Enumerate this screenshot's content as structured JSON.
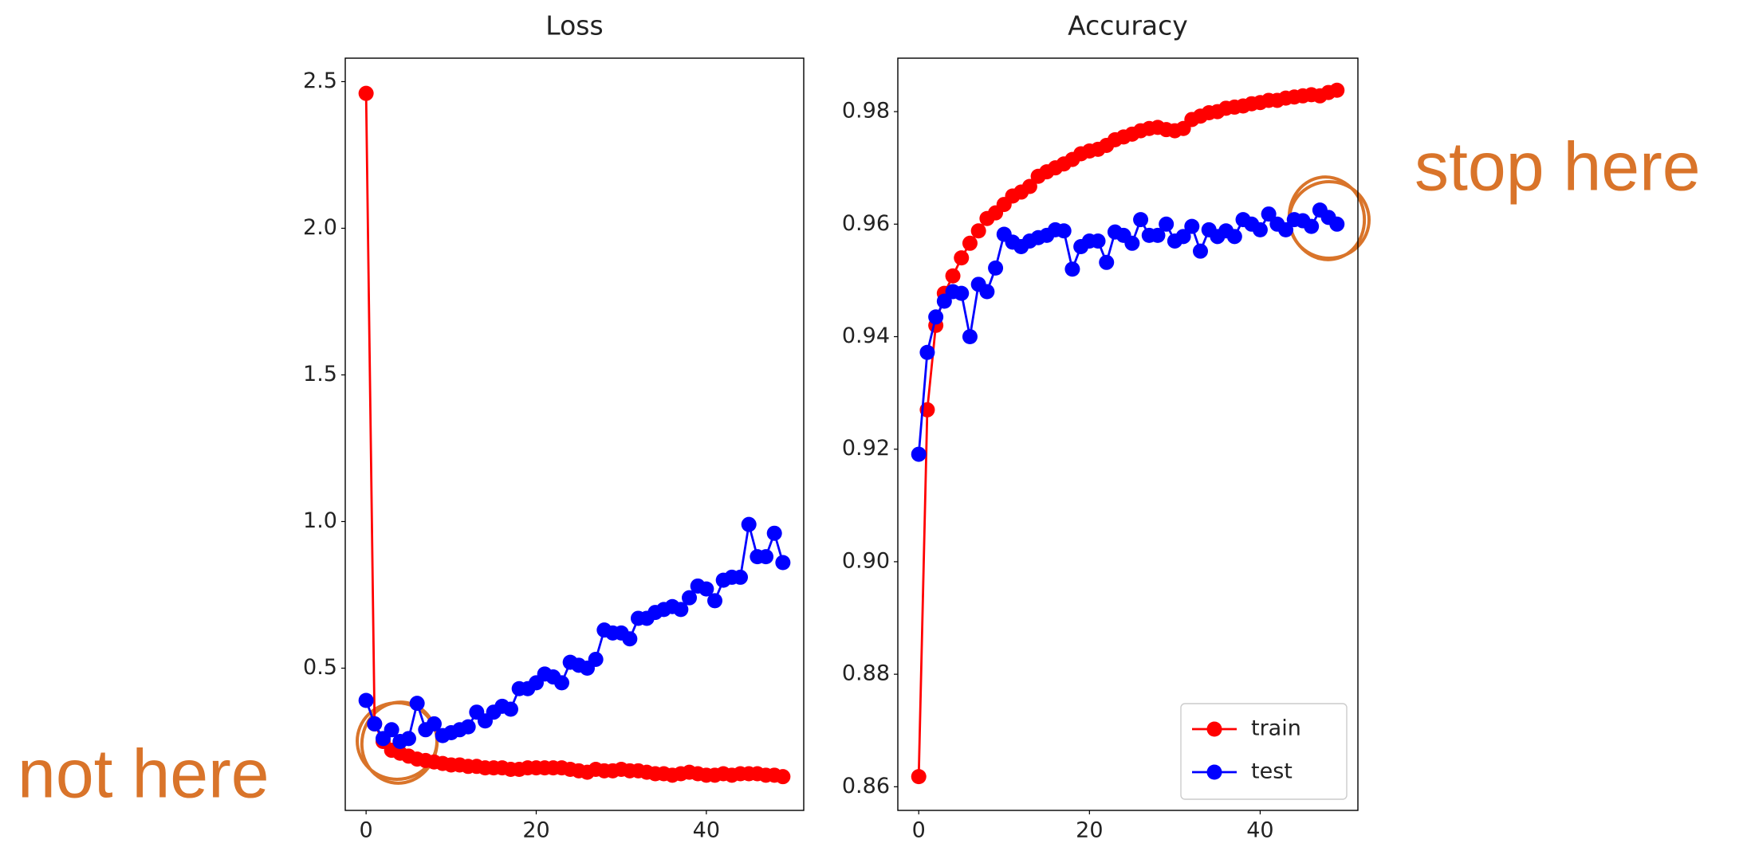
{
  "chart_data": [
    {
      "type": "line",
      "title": "Loss",
      "x": [
        0,
        1,
        2,
        3,
        4,
        5,
        6,
        7,
        8,
        9,
        10,
        11,
        12,
        13,
        14,
        15,
        16,
        17,
        18,
        19,
        20,
        21,
        22,
        23,
        24,
        25,
        26,
        27,
        28,
        29,
        30,
        31,
        32,
        33,
        34,
        35,
        36,
        37,
        38,
        39,
        40,
        41,
        42,
        43,
        44,
        45,
        46,
        47,
        48,
        49
      ],
      "series": [
        {
          "name": "train",
          "color": "#ff0000",
          "values": [
            2.46,
            0.31,
            0.25,
            0.22,
            0.21,
            0.2,
            0.19,
            0.185,
            0.18,
            0.175,
            0.17,
            0.17,
            0.165,
            0.165,
            0.16,
            0.16,
            0.16,
            0.155,
            0.155,
            0.16,
            0.16,
            0.16,
            0.16,
            0.16,
            0.155,
            0.15,
            0.145,
            0.155,
            0.15,
            0.15,
            0.155,
            0.15,
            0.15,
            0.145,
            0.14,
            0.14,
            0.135,
            0.14,
            0.145,
            0.14,
            0.135,
            0.135,
            0.14,
            0.135,
            0.14,
            0.14,
            0.14,
            0.135,
            0.135,
            0.13
          ]
        },
        {
          "name": "test",
          "color": "#0000ff",
          "values": [
            0.39,
            0.31,
            0.26,
            0.29,
            0.25,
            0.26,
            0.38,
            0.29,
            0.31,
            0.27,
            0.28,
            0.29,
            0.3,
            0.35,
            0.32,
            0.35,
            0.37,
            0.36,
            0.43,
            0.43,
            0.45,
            0.48,
            0.47,
            0.45,
            0.52,
            0.51,
            0.5,
            0.53,
            0.63,
            0.62,
            0.62,
            0.6,
            0.67,
            0.67,
            0.69,
            0.7,
            0.71,
            0.7,
            0.74,
            0.78,
            0.77,
            0.73,
            0.8,
            0.81,
            0.81,
            0.99,
            0.88,
            0.88,
            0.96,
            0.86
          ]
        }
      ],
      "xlim": [
        -2.45,
        51.45
      ],
      "xticks": [
        0,
        20,
        40
      ],
      "ylim": [
        0.015,
        2.58
      ],
      "yticks": [
        0.5,
        {
          "value": 1,
          "label": "1.0"
        },
        1.5,
        {
          "value": 2,
          "label": "2.0"
        },
        2.5
      ]
    },
    {
      "type": "line",
      "title": "Accuracy",
      "x": [
        0,
        1,
        2,
        3,
        4,
        5,
        6,
        7,
        8,
        9,
        10,
        11,
        12,
        13,
        14,
        15,
        16,
        17,
        18,
        19,
        20,
        21,
        22,
        23,
        24,
        25,
        26,
        27,
        28,
        29,
        30,
        31,
        32,
        33,
        34,
        35,
        36,
        37,
        38,
        39,
        40,
        41,
        42,
        43,
        44,
        45,
        46,
        47,
        48,
        49
      ],
      "series": [
        {
          "name": "train",
          "color": "#ff0000",
          "values": [
            0.8618,
            0.927,
            0.942,
            0.9477,
            0.9508,
            0.954,
            0.9566,
            0.9588,
            0.961,
            0.962,
            0.9635,
            0.965,
            0.9657,
            0.9667,
            0.9685,
            0.9693,
            0.97,
            0.9707,
            0.9715,
            0.9725,
            0.973,
            0.9733,
            0.974,
            0.975,
            0.9755,
            0.976,
            0.9766,
            0.977,
            0.9772,
            0.9768,
            0.9766,
            0.977,
            0.9786,
            0.9792,
            0.9798,
            0.98,
            0.9806,
            0.9808,
            0.981,
            0.9814,
            0.9816,
            0.982,
            0.982,
            0.9824,
            0.9826,
            0.9828,
            0.983,
            0.9828,
            0.9834,
            0.9838
          ]
        },
        {
          "name": "test",
          "color": "#0000ff",
          "values": [
            0.9191,
            0.9372,
            0.9435,
            0.9463,
            0.948,
            0.9477,
            0.94,
            0.9493,
            0.948,
            0.9522,
            0.9582,
            0.9568,
            0.956,
            0.957,
            0.9576,
            0.958,
            0.959,
            0.9588,
            0.952,
            0.956,
            0.957,
            0.957,
            0.9532,
            0.9586,
            0.958,
            0.9566,
            0.9608,
            0.958,
            0.958,
            0.96,
            0.957,
            0.9578,
            0.9596,
            0.9552,
            0.959,
            0.9578,
            0.9588,
            0.9578,
            0.9608,
            0.96,
            0.959,
            0.9618,
            0.96,
            0.959,
            0.9608,
            0.9606,
            0.9596,
            0.9625,
            0.9612,
            0.96
          ]
        }
      ],
      "xlim": [
        -2.45,
        51.45
      ],
      "xticks": [
        0,
        20,
        40
      ],
      "ylim": [
        0.8558,
        0.9895
      ],
      "yticks": [
        0.86,
        0.88,
        {
          "value": 0.9,
          "label": "0.90"
        },
        0.92,
        0.94,
        0.96,
        0.98
      ],
      "legend": "lower right"
    }
  ],
  "annotations": [
    "not here",
    "stop here"
  ]
}
